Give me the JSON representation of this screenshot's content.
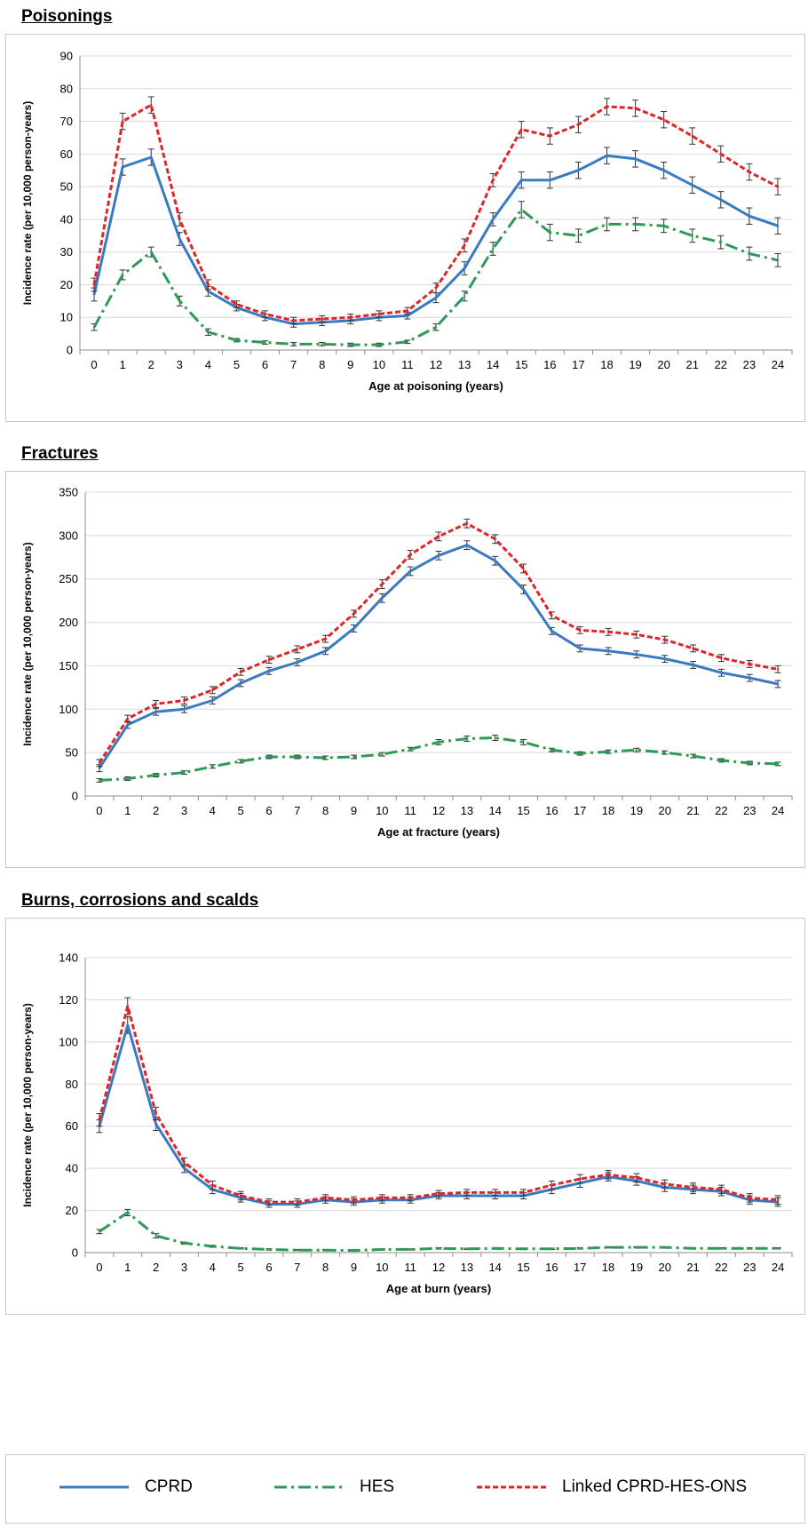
{
  "colors": {
    "cprd": "#3a7ac0",
    "hes": "#2e9a56",
    "linked": "#e0252a",
    "grid": "#d9d9d9",
    "errorbar": "#333333"
  },
  "legend": {
    "cprd": "CPRD",
    "hes": "HES",
    "linked": "Linked CPRD-HES-ONS"
  },
  "chart_data": [
    {
      "type": "line",
      "title": "Poisonings",
      "xlabel": "Age at poisoning (years)",
      "ylabel": "Incidence rate (per 10,000 person-years)",
      "x": [
        0,
        1,
        2,
        3,
        4,
        5,
        6,
        7,
        8,
        9,
        10,
        11,
        12,
        13,
        14,
        15,
        16,
        17,
        18,
        19,
        20,
        21,
        22,
        23,
        24
      ],
      "ylim": [
        0,
        90
      ],
      "yticks": [
        0,
        10,
        20,
        30,
        40,
        50,
        60,
        70,
        80,
        90
      ],
      "grid": true,
      "series": [
        {
          "name": "CPRD",
          "values": [
            17,
            56,
            59,
            34,
            18,
            13,
            10,
            8,
            8.5,
            9,
            10,
            10.5,
            16,
            25,
            40,
            52,
            52,
            55,
            59.5,
            58.5,
            55,
            50.5,
            46,
            41,
            38
          ],
          "err": [
            2,
            2.5,
            2.5,
            2,
            1.5,
            1,
            1,
            1,
            1,
            1,
            1,
            1,
            1.5,
            2,
            2,
            2.5,
            2.5,
            2.5,
            2.5,
            2.5,
            2.5,
            2.5,
            2.5,
            2.5,
            2.5
          ]
        },
        {
          "name": "HES",
          "values": [
            7,
            23,
            30,
            15,
            5.5,
            3,
            2.3,
            1.8,
            1.8,
            1.6,
            1.6,
            2.5,
            7,
            16.5,
            31,
            43,
            36,
            35,
            38.5,
            38.5,
            38,
            35,
            33,
            29.5,
            27.5
          ],
          "err": [
            1,
            1.5,
            1.5,
            1.5,
            1,
            0.5,
            0.5,
            0.5,
            0.5,
            0.5,
            0.5,
            0.5,
            1,
            1.5,
            2,
            2.5,
            2.5,
            2,
            2,
            2,
            2,
            2,
            2,
            2,
            2
          ]
        },
        {
          "name": "Linked CPRD-HES-ONS",
          "values": [
            20,
            70,
            75,
            40,
            20,
            14,
            11,
            9,
            9.5,
            10,
            11,
            12,
            19,
            32,
            52,
            67.5,
            65.5,
            69,
            74.5,
            74,
            70.5,
            65.5,
            60,
            54.5,
            50
          ],
          "err": [
            2,
            2.5,
            2.5,
            2,
            1.5,
            1,
            1,
            1,
            1,
            1,
            1,
            1,
            1.5,
            2,
            2,
            2.5,
            2.5,
            2.5,
            2.5,
            2.5,
            2.5,
            2.5,
            2.5,
            2.5,
            2.5
          ]
        }
      ]
    },
    {
      "type": "line",
      "title": "Fractures",
      "xlabel": "Age at fracture (years)",
      "ylabel": "Incidence rate (per 10,000 person-years)",
      "x": [
        0,
        1,
        2,
        3,
        4,
        5,
        6,
        7,
        8,
        9,
        10,
        11,
        12,
        13,
        14,
        15,
        16,
        17,
        18,
        19,
        20,
        21,
        22,
        23,
        24
      ],
      "ylim": [
        0,
        350
      ],
      "yticks": [
        0,
        50,
        100,
        150,
        200,
        250,
        300,
        350
      ],
      "grid": true,
      "series": [
        {
          "name": "CPRD",
          "values": [
            32,
            82,
            97,
            100,
            110,
            130,
            144,
            154,
            167,
            193,
            228,
            259,
            277,
            289,
            271,
            238,
            190,
            170,
            167,
            163,
            158,
            151,
            142,
            136,
            129
          ],
          "err": [
            4,
            4,
            4,
            4,
            4,
            4,
            4,
            4,
            4,
            4,
            5,
            5,
            5,
            5,
            5,
            5,
            4,
            4,
            4,
            4,
            4,
            4,
            4,
            4,
            4
          ]
        },
        {
          "name": "HES",
          "values": [
            18,
            20,
            24,
            27,
            34,
            40,
            45,
            45,
            44,
            45,
            48,
            54,
            62,
            66,
            67,
            62,
            53,
            49,
            51,
            53,
            50,
            46,
            41,
            38,
            37
          ],
          "err": [
            2,
            2,
            2,
            2,
            2,
            2,
            2,
            2,
            2,
            2,
            2,
            2,
            3,
            3,
            3,
            3,
            2,
            2,
            2,
            2,
            2,
            2,
            2,
            2,
            2
          ]
        },
        {
          "name": "Linked CPRD-HES-ONS",
          "values": [
            38,
            89,
            106,
            110,
            122,
            143,
            157,
            169,
            181,
            210,
            244,
            278,
            299,
            314,
            296,
            262,
            208,
            191,
            189,
            186,
            180,
            170,
            159,
            152,
            146
          ],
          "err": [
            4,
            4,
            4,
            4,
            4,
            4,
            4,
            4,
            4,
            4,
            5,
            5,
            5,
            5,
            5,
            5,
            4,
            4,
            4,
            4,
            4,
            4,
            4,
            4,
            4
          ]
        }
      ]
    },
    {
      "type": "line",
      "title": "Burns, corrosions and scalds",
      "xlabel": "Age at burn (years)",
      "ylabel": "Incidence rate (per 10,000 person-years)",
      "x": [
        0,
        1,
        2,
        3,
        4,
        5,
        6,
        7,
        8,
        9,
        10,
        11,
        12,
        13,
        14,
        15,
        16,
        17,
        18,
        19,
        20,
        21,
        22,
        23,
        24
      ],
      "ylim": [
        0,
        140
      ],
      "yticks": [
        0,
        20,
        40,
        60,
        80,
        100,
        120,
        140
      ],
      "grid": true,
      "series": [
        {
          "name": "CPRD",
          "values": [
            60,
            108,
            61,
            40,
            30,
            26,
            23,
            23,
            25,
            24,
            25,
            25,
            27,
            27,
            27,
            27,
            30,
            33,
            36,
            34,
            31,
            30,
            29,
            25,
            24
          ],
          "err": [
            3,
            4,
            3,
            2,
            2,
            2,
            1.5,
            1.5,
            1.5,
            1.5,
            1.5,
            1.5,
            1.5,
            1.5,
            1.5,
            1.5,
            2,
            2,
            2,
            2,
            2,
            2,
            2,
            2,
            2
          ]
        },
        {
          "name": "HES",
          "values": [
            10,
            19,
            8,
            4.5,
            3,
            2,
            1.5,
            1.2,
            1.2,
            1,
            1.5,
            1.5,
            2,
            1.8,
            2,
            1.8,
            1.8,
            2,
            2.5,
            2.5,
            2.5,
            2,
            2,
            2,
            2
          ],
          "err": [
            1,
            1.5,
            1,
            0.5,
            0.5,
            0.3,
            0.3,
            0.3,
            0.3,
            0.3,
            0.3,
            0.3,
            0.3,
            0.3,
            0.3,
            0.3,
            0.3,
            0.3,
            0.3,
            0.3,
            0.3,
            0.3,
            0.3,
            0.3,
            0.3
          ]
        },
        {
          "name": "Linked CPRD-HES-ONS",
          "values": [
            63,
            117,
            66,
            43,
            32,
            27,
            24,
            24,
            26,
            25,
            26,
            26,
            28,
            28.5,
            28.5,
            28.5,
            32,
            35,
            37,
            35.5,
            32.5,
            31,
            30,
            26,
            25
          ],
          "err": [
            3,
            4,
            3,
            2,
            2,
            2,
            1.5,
            1.5,
            1.5,
            1.5,
            1.5,
            1.5,
            1.5,
            1.5,
            1.5,
            1.5,
            2,
            2,
            2,
            2,
            2,
            2,
            2,
            2,
            2
          ]
        }
      ]
    }
  ]
}
